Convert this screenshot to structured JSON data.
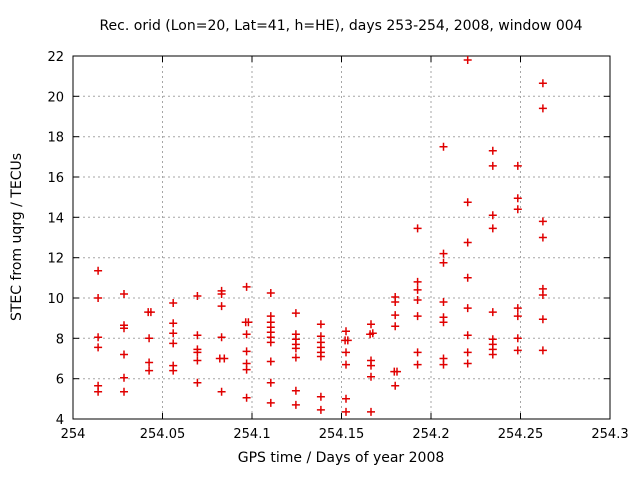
{
  "chart_data": {
    "type": "scatter",
    "title": "Rec. orid (Lon=20, Lat=41, h=HE), days 253-254, 2008, window 004",
    "xlabel": "GPS time / Days of year 2008",
    "ylabel": "STEC from uqrg / TECUs",
    "xlim": [
      254,
      254.3
    ],
    "ylim": [
      4,
      22
    ],
    "xticks": [
      254,
      254.05,
      254.1,
      254.15,
      254.2,
      254.25,
      254.3
    ],
    "xtick_labels": [
      "254",
      "254.05",
      "254.1",
      "254.15",
      "254.2",
      "254.25",
      "254.3"
    ],
    "yticks": [
      4,
      6,
      8,
      10,
      12,
      14,
      16,
      18,
      20,
      22
    ],
    "ytick_labels": [
      "4",
      "6",
      "8",
      "10",
      "12",
      "14",
      "16",
      "18",
      "20",
      "22"
    ],
    "grid": true,
    "legend": null,
    "marker": "plus",
    "colors": {
      "marker": "#e00000",
      "grid": "#a6a6a6",
      "axis": "#000000",
      "text": "#000000",
      "background": "#ffffff"
    },
    "points": [
      [
        254.014,
        11.35
      ],
      [
        254.014,
        10.0
      ],
      [
        254.014,
        8.05
      ],
      [
        254.014,
        7.55
      ],
      [
        254.014,
        5.65
      ],
      [
        254.014,
        5.35
      ],
      [
        254.0285,
        10.2
      ],
      [
        254.0285,
        8.65
      ],
      [
        254.0285,
        8.5
      ],
      [
        254.0285,
        7.2
      ],
      [
        254.0285,
        6.05
      ],
      [
        254.0285,
        5.35
      ],
      [
        254.042,
        9.3
      ],
      [
        254.0435,
        9.3
      ],
      [
        254.0425,
        8.0
      ],
      [
        254.0425,
        6.8
      ],
      [
        254.0425,
        6.4
      ],
      [
        254.056,
        9.75
      ],
      [
        254.056,
        8.75
      ],
      [
        254.056,
        8.25
      ],
      [
        254.056,
        7.75
      ],
      [
        254.056,
        6.65
      ],
      [
        254.056,
        6.4
      ],
      [
        254.0695,
        10.1
      ],
      [
        254.0695,
        8.15
      ],
      [
        254.0695,
        7.45
      ],
      [
        254.0695,
        7.3
      ],
      [
        254.0695,
        6.9
      ],
      [
        254.0695,
        5.8
      ],
      [
        254.083,
        10.35
      ],
      [
        254.083,
        10.2
      ],
      [
        254.083,
        9.6
      ],
      [
        254.083,
        8.05
      ],
      [
        254.082,
        7.0
      ],
      [
        254.0845,
        7.0
      ],
      [
        254.083,
        5.35
      ],
      [
        254.097,
        10.55
      ],
      [
        254.0965,
        8.8
      ],
      [
        254.098,
        8.8
      ],
      [
        254.097,
        8.2
      ],
      [
        254.097,
        7.35
      ],
      [
        254.097,
        6.75
      ],
      [
        254.097,
        6.45
      ],
      [
        254.097,
        5.05
      ],
      [
        254.1105,
        10.25
      ],
      [
        254.1105,
        9.1
      ],
      [
        254.1105,
        8.8
      ],
      [
        254.1105,
        8.55
      ],
      [
        254.1105,
        8.3
      ],
      [
        254.1105,
        8.05
      ],
      [
        254.1105,
        7.8
      ],
      [
        254.1105,
        6.85
      ],
      [
        254.1105,
        5.8
      ],
      [
        254.1105,
        4.8
      ],
      [
        254.1245,
        9.25
      ],
      [
        254.1245,
        8.2
      ],
      [
        254.1245,
        7.95
      ],
      [
        254.1245,
        7.7
      ],
      [
        254.1245,
        7.5
      ],
      [
        254.1245,
        7.05
      ],
      [
        254.1245,
        5.4
      ],
      [
        254.1245,
        4.7
      ],
      [
        254.1385,
        8.7
      ],
      [
        254.1385,
        8.1
      ],
      [
        254.1385,
        7.8
      ],
      [
        254.1385,
        7.55
      ],
      [
        254.1385,
        7.3
      ],
      [
        254.1385,
        7.1
      ],
      [
        254.1385,
        5.1
      ],
      [
        254.1385,
        4.45
      ],
      [
        254.1525,
        8.35
      ],
      [
        254.152,
        7.9
      ],
      [
        254.1535,
        7.9
      ],
      [
        254.1525,
        7.3
      ],
      [
        254.1525,
        6.7
      ],
      [
        254.1525,
        5.0
      ],
      [
        254.1525,
        4.35
      ],
      [
        254.1665,
        8.7
      ],
      [
        254.166,
        8.2
      ],
      [
        254.1675,
        8.25
      ],
      [
        254.1665,
        6.9
      ],
      [
        254.1665,
        6.65
      ],
      [
        254.1665,
        6.1
      ],
      [
        254.1665,
        4.35
      ],
      [
        254.18,
        10.05
      ],
      [
        254.18,
        9.8
      ],
      [
        254.18,
        9.15
      ],
      [
        254.18,
        8.6
      ],
      [
        254.1795,
        6.35
      ],
      [
        254.181,
        6.35
      ],
      [
        254.18,
        5.65
      ],
      [
        254.1925,
        13.45
      ],
      [
        254.1925,
        10.8
      ],
      [
        254.1925,
        10.4
      ],
      [
        254.1925,
        9.9
      ],
      [
        254.1925,
        9.1
      ],
      [
        254.1925,
        7.3
      ],
      [
        254.1925,
        6.7
      ],
      [
        254.207,
        17.5
      ],
      [
        254.207,
        12.2
      ],
      [
        254.207,
        11.75
      ],
      [
        254.207,
        9.8
      ],
      [
        254.207,
        9.05
      ],
      [
        254.207,
        8.8
      ],
      [
        254.207,
        7.0
      ],
      [
        254.207,
        6.7
      ],
      [
        254.2205,
        21.8
      ],
      [
        254.2205,
        14.75
      ],
      [
        254.2205,
        12.75
      ],
      [
        254.2205,
        11.0
      ],
      [
        254.2205,
        9.5
      ],
      [
        254.2205,
        8.15
      ],
      [
        254.2205,
        7.3
      ],
      [
        254.2205,
        6.75
      ],
      [
        254.2345,
        17.3
      ],
      [
        254.2345,
        16.55
      ],
      [
        254.2345,
        14.1
      ],
      [
        254.2345,
        13.45
      ],
      [
        254.2345,
        9.3
      ],
      [
        254.2345,
        7.95
      ],
      [
        254.2345,
        7.7
      ],
      [
        254.2345,
        7.45
      ],
      [
        254.2345,
        7.2
      ],
      [
        254.2485,
        16.55
      ],
      [
        254.2485,
        14.95
      ],
      [
        254.2485,
        14.4
      ],
      [
        254.2485,
        9.5
      ],
      [
        254.2485,
        9.1
      ],
      [
        254.2485,
        8.0
      ],
      [
        254.2485,
        7.4
      ],
      [
        254.2625,
        20.65
      ],
      [
        254.2625,
        19.4
      ],
      [
        254.2625,
        13.8
      ],
      [
        254.2625,
        13.0
      ],
      [
        254.2625,
        10.45
      ],
      [
        254.2625,
        10.15
      ],
      [
        254.2625,
        8.95
      ],
      [
        254.2625,
        7.4
      ]
    ]
  }
}
